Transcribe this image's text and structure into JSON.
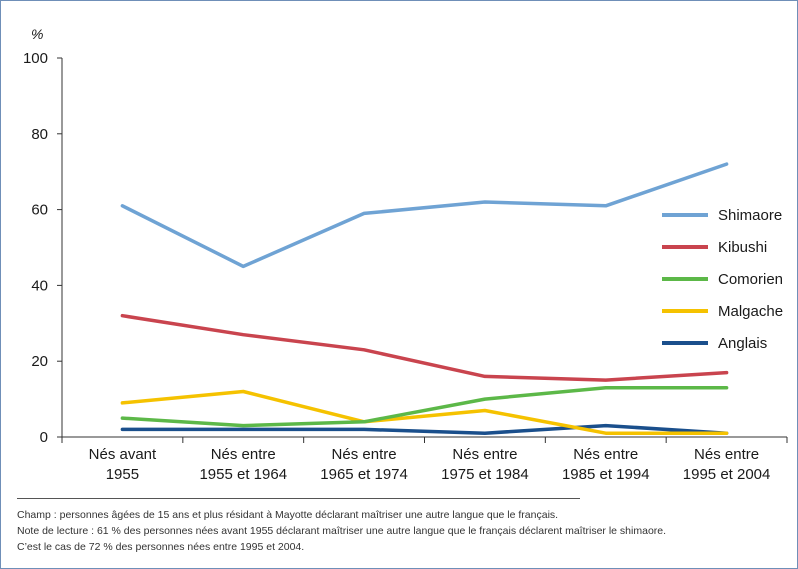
{
  "chart_data": {
    "type": "line",
    "unit_label": "%",
    "categories": [
      [
        "Nés avant",
        "1955"
      ],
      [
        "Nés entre",
        "1955 et 1964"
      ],
      [
        "Nés entre",
        "1965 et 1974"
      ],
      [
        "Nés entre",
        "1975 et 1984"
      ],
      [
        "Nés entre",
        "1985 et 1994"
      ],
      [
        "Nés entre",
        "1995 et 2004"
      ]
    ],
    "ylim": [
      0,
      100
    ],
    "yticks": [
      0,
      20,
      40,
      60,
      80,
      100
    ],
    "grid": false,
    "legend_position": "right",
    "series": [
      {
        "name": "Shimaore",
        "color": "#6fa3d4",
        "values": [
          61,
          45,
          59,
          62,
          61,
          72
        ]
      },
      {
        "name": "Kibushi",
        "color": "#c9444e",
        "values": [
          32,
          27,
          23,
          16,
          15,
          17
        ]
      },
      {
        "name": "Comorien",
        "color": "#5cb848",
        "values": [
          5,
          3,
          4,
          10,
          13,
          13
        ]
      },
      {
        "name": "Malgache",
        "color": "#f5c200",
        "values": [
          9,
          12,
          4,
          7,
          1,
          1
        ]
      },
      {
        "name": "Anglais",
        "color": "#1a4f8c",
        "values": [
          2,
          2,
          2,
          1,
          3,
          1
        ]
      }
    ]
  },
  "notes": {
    "champ": "Champ : personnes âgées de 15 ans et plus résidant à Mayotte déclarant maîtriser une autre langue que le français.",
    "lecture": "Note de lecture : 61 % des personnes nées avant 1955 déclarant maîtriser une autre langue que le français déclarent maîtriser le shimaore.",
    "lecture2": "C’est le cas de 72 % des personnes nées entre 1995 et 2004."
  }
}
